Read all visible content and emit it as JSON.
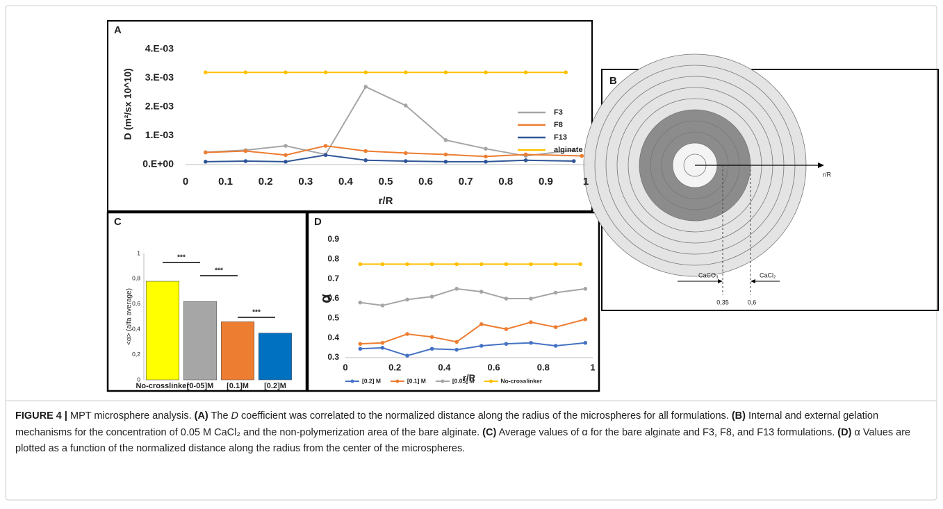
{
  "chart_data": [
    {
      "type": "line",
      "panel": "A",
      "xlabel": "r/R",
      "ylabel": "D (m²/sx 10^10)",
      "xlim": [
        0,
        1
      ],
      "xticks": [
        0,
        0.1,
        0.2,
        0.3,
        0.4,
        0.5,
        0.6,
        0.7,
        0.8,
        0.9,
        1
      ],
      "ylim": [
        0,
        0.0042
      ],
      "yticks": [
        {
          "value": 0,
          "label": "0.E+00"
        },
        {
          "value": 0.001,
          "label": "1.E-03"
        },
        {
          "value": 0.002,
          "label": "2.E-03"
        },
        {
          "value": 0.003,
          "label": "3.E-03"
        },
        {
          "value": 0.004,
          "label": "4.E-03"
        }
      ],
      "legend": "right",
      "series": [
        {
          "name": "F3",
          "color": "#a5a5a5",
          "x": [
            0.05,
            0.15,
            0.25,
            0.35,
            0.45,
            0.55,
            0.65,
            0.75,
            0.85,
            0.97
          ],
          "values": [
            0.00043,
            0.0005,
            0.00065,
            0.00035,
            0.0027,
            0.00205,
            0.00085,
            0.00055,
            0.0003,
            0.0005
          ]
        },
        {
          "name": "F8",
          "color": "#ed7d31",
          "x": [
            0.05,
            0.15,
            0.25,
            0.35,
            0.45,
            0.55,
            0.65,
            0.75,
            0.85,
            0.99
          ],
          "values": [
            0.00042,
            0.00047,
            0.00033,
            0.00065,
            0.00047,
            0.0004,
            0.00035,
            0.00028,
            0.00035,
            0.0003
          ]
        },
        {
          "name": "F13",
          "color": "#2f5597",
          "x": [
            0.05,
            0.15,
            0.25,
            0.35,
            0.45,
            0.55,
            0.65,
            0.75,
            0.85,
            0.97
          ],
          "values": [
            0.0001,
            0.00012,
            0.0001,
            0.00033,
            0.00015,
            0.00012,
            0.0001,
            0.0001,
            0.00015,
            0.00012
          ]
        },
        {
          "name": "alginate",
          "color": "#ffc000",
          "x": [
            0.05,
            0.15,
            0.25,
            0.35,
            0.45,
            0.55,
            0.65,
            0.75,
            0.85,
            0.95
          ],
          "values": [
            0.0032,
            0.0032,
            0.0032,
            0.0032,
            0.0032,
            0.0032,
            0.0032,
            0.0032,
            0.0032,
            0.0032
          ]
        }
      ]
    },
    {
      "type": "bar",
      "panel": "C",
      "ylabel": "<α> (alfa average)",
      "categories": [
        "No-crosslinker",
        "[0-05]M",
        "[0.1]M",
        "[0.2]M"
      ],
      "values": [
        0.78,
        0.62,
        0.46,
        0.37
      ],
      "colors": [
        "#ffff00",
        "#a6a6a6",
        "#ed7d31",
        "#0070c0"
      ],
      "ylim": [
        0,
        1
      ],
      "yticks": [
        0,
        {
          "value": 0.2,
          "label": "0,2"
        },
        {
          "value": 0.4,
          "label": "0,4"
        },
        {
          "value": 0.6,
          "label": "0,6"
        },
        {
          "value": 0.8,
          "label": "0,8"
        },
        1
      ],
      "annotations": [
        "***",
        "***",
        "***"
      ]
    },
    {
      "type": "line",
      "panel": "D",
      "xlabel": "r/R",
      "ylabel": "α",
      "xlim": [
        0,
        1
      ],
      "xticks": [
        0,
        0.2,
        0.4,
        0.6,
        0.8,
        1
      ],
      "ylim": [
        0.3,
        0.9
      ],
      "yticks": [
        0.3,
        0.4,
        0.5,
        0.6,
        0.7,
        0.8,
        0.9
      ],
      "legend": "bottom",
      "series": [
        {
          "name": "[0.2] M",
          "color": "#4472c4",
          "x": [
            0.06,
            0.15,
            0.25,
            0.35,
            0.45,
            0.55,
            0.65,
            0.75,
            0.85,
            0.97
          ],
          "values": [
            0.345,
            0.35,
            0.31,
            0.345,
            0.34,
            0.36,
            0.37,
            0.375,
            0.36,
            0.375
          ]
        },
        {
          "name": "[0.1] M",
          "color": "#ed7d31",
          "x": [
            0.06,
            0.15,
            0.25,
            0.35,
            0.45,
            0.55,
            0.65,
            0.75,
            0.85,
            0.97
          ],
          "values": [
            0.37,
            0.375,
            0.42,
            0.405,
            0.38,
            0.47,
            0.445,
            0.48,
            0.455,
            0.495
          ]
        },
        {
          "name": "[0.05] M",
          "color": "#a5a5a5",
          "x": [
            0.06,
            0.15,
            0.25,
            0.35,
            0.45,
            0.55,
            0.65,
            0.75,
            0.85,
            0.97
          ],
          "values": [
            0.58,
            0.565,
            0.595,
            0.61,
            0.65,
            0.635,
            0.6,
            0.6,
            0.63,
            0.65
          ]
        },
        {
          "name": "No-crosslinker",
          "color": "#ffc000",
          "x": [
            0.06,
            0.15,
            0.25,
            0.35,
            0.45,
            0.55,
            0.65,
            0.75,
            0.85,
            0.95
          ],
          "values": [
            0.775,
            0.775,
            0.775,
            0.775,
            0.775,
            0.775,
            0.775,
            0.775,
            0.775,
            0.775
          ]
        }
      ]
    }
  ],
  "diagram": {
    "panel": "B",
    "axis_label": "r/R",
    "left_label": "CaCO₃",
    "right_label": "CaCl₂",
    "left_mark": "0,35",
    "right_mark": "0,6"
  },
  "caption": {
    "parts": [
      "FIGURE 4 |",
      " MPT microsphere analysis. ",
      "(A)",
      " The ",
      "D",
      " coefficient was correlated to the normalized distance along the radius of the microspheres for all formulations. ",
      "(B)",
      " Internal and external gelation mechanisms for the concentration of 0.05 M CaCl₂ and the non-polymerization area of the bare alginate. ",
      "(C)",
      " Average values of α for the bare alginate and F3, F8, and F13 formulations. ",
      "(D)",
      " α Values are plotted as a function of the normalized distance along the radius from the center of the microspheres."
    ]
  }
}
